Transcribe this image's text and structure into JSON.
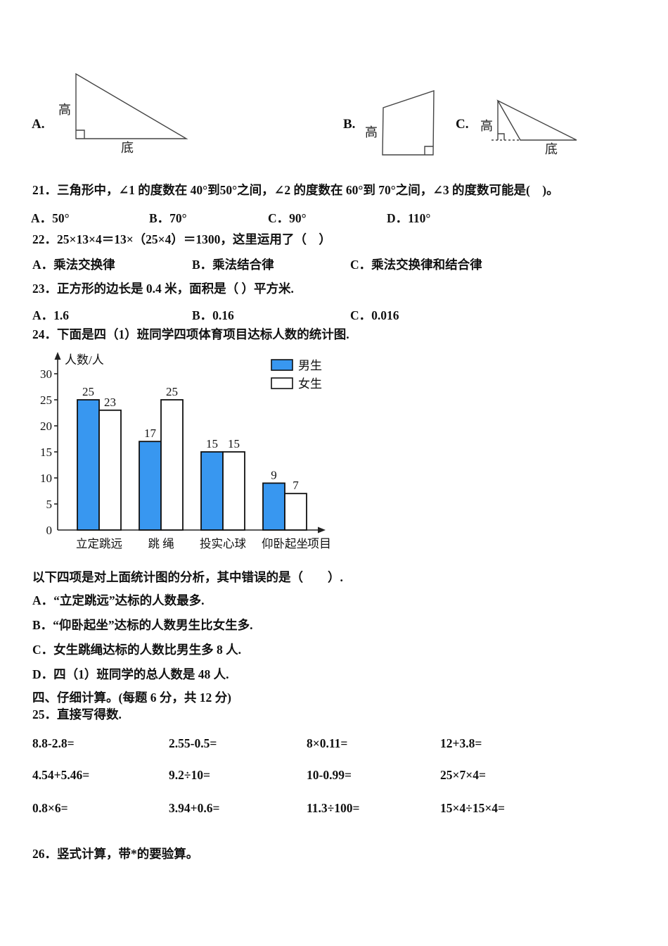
{
  "figures": {
    "a": {
      "label": "A.",
      "height": "高",
      "base": "底"
    },
    "b": {
      "label": "B.",
      "height": "高"
    },
    "c": {
      "label": "C.",
      "height": "高",
      "base": "底"
    }
  },
  "q21": {
    "text": "21．三角形中，∠1 的度数在 40°到50°之间，∠2 的度数在 60°到 70°之间，∠3 的度数可能是(　)。",
    "options": [
      "A．50°",
      "B．70°",
      "C．90°",
      "D．110°"
    ]
  },
  "q22": {
    "text": "22．25×13×4＝13×（25×4）＝1300，这里运用了（　）",
    "options": [
      "A．乘法交换律",
      "B．乘法结合律",
      "C．乘法交换律和结合律"
    ]
  },
  "q23": {
    "text": "23．正方形的边长是 0.4 米，面积是（ ）平方米.",
    "options": [
      "A．1.6",
      "B．0.16",
      "C．0.016"
    ]
  },
  "q24": {
    "text": "24．下面是四（1）班同学四项体育项目达标人数的统计图.",
    "analysis": "以下四项是对上面统计图的分析，其中错误的是（　　）.",
    "options": [
      "A．“立定跳远”达标的人数最多.",
      "B．“仰卧起坐”达标的人数男生比女生多.",
      "C．女生跳绳达标的人数比男生多 8 人.",
      "D．四（1）班同学的总人数是 48 人."
    ]
  },
  "section4": {
    "title": "四、仔细计算。(每题 6 分，共 12 分)"
  },
  "q25": {
    "title": "25．直接写得数.",
    "rows": [
      [
        "8.8-2.8=",
        "2.55-0.5=",
        "8×0.11=",
        "12+3.8="
      ],
      [
        "4.54+5.46=",
        "9.2÷10=",
        "10-0.99=",
        "25×7×4="
      ],
      [
        "0.8×6=",
        "3.94+0.6=",
        "11.3÷100=",
        "15×4÷15×4="
      ]
    ]
  },
  "q26": {
    "text": "26．竖式计算，带*的要验算。"
  },
  "chart_data": {
    "type": "bar",
    "title": "",
    "ylabel": "人数/人",
    "xlabel": "项目",
    "categories": [
      "立定跳远",
      "跳 绳",
      "投实心球",
      "仰卧起坐"
    ],
    "series": [
      {
        "name": "男生",
        "color": "#3897F0",
        "values": [
          25,
          17,
          15,
          9
        ]
      },
      {
        "name": "女生",
        "color": "#FFFFFF",
        "values": [
          23,
          25,
          15,
          7
        ]
      }
    ],
    "ylim": [
      0,
      30
    ],
    "yticks": [
      0,
      5,
      10,
      15,
      20,
      25,
      30
    ],
    "legend_position": "top-right",
    "grid": false
  }
}
